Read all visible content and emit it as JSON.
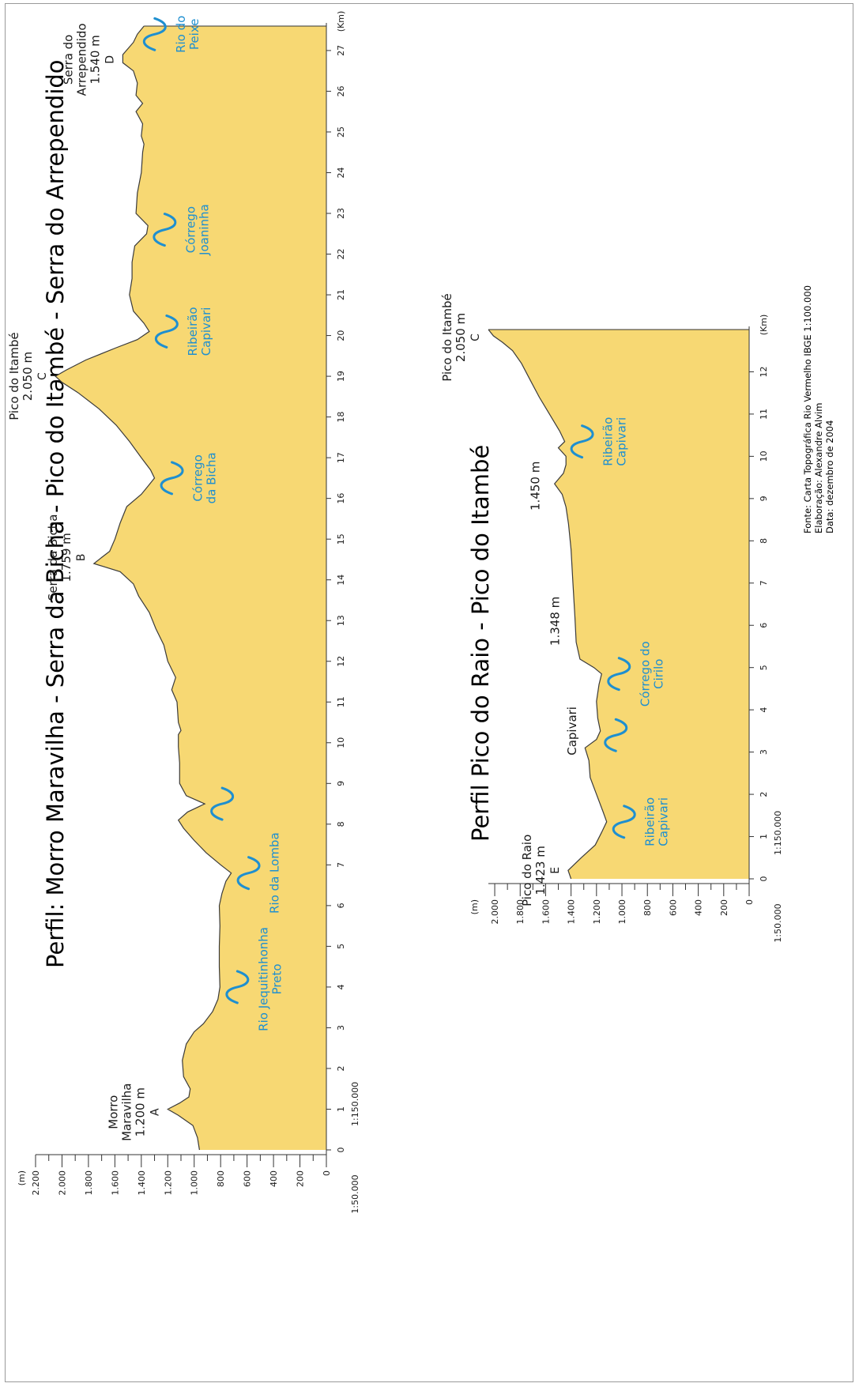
{
  "colors": {
    "terrain": "#f7d873",
    "terrain_stroke": "#3b3b3b",
    "river": "#1e8fd0",
    "river_label": "#1e8fd0",
    "axis": "#333333",
    "text": "#1a1a1a"
  },
  "chart_data": [
    {
      "type": "area",
      "title": "Perfil: Morro Maravilha - Serra da Bicha - Pico do Itambé - Serra do Arrependido",
      "ylabel": "(m)",
      "xlabel": "(Km)",
      "vertical_scale": "1:50.000",
      "horizontal_scale": "1:150.000",
      "xlim": [
        0,
        27.6
      ],
      "ylim": [
        0,
        2200
      ],
      "yticks": [
        0,
        200,
        400,
        600,
        800,
        1000,
        1200,
        1400,
        1600,
        1800,
        2000,
        2200
      ],
      "ytick_labels": [
        "0",
        "200",
        "400",
        "600",
        "800",
        "1.000",
        "1.200",
        "1.400",
        "1.600",
        "1.800",
        "2.000",
        "2.200"
      ],
      "xticks": [
        0,
        1,
        2,
        3,
        4,
        5,
        6,
        7,
        8,
        9,
        10,
        11,
        12,
        13,
        14,
        15,
        16,
        17,
        18,
        19,
        20,
        21,
        22,
        23,
        24,
        25,
        26,
        27
      ],
      "xtick_labels": [
        "0",
        "1",
        "2",
        "3",
        "4",
        "5",
        "6",
        "7",
        "8",
        "9",
        "10",
        "11",
        "12",
        "13",
        "14",
        "15",
        "16",
        "17",
        "18",
        "19",
        "20",
        "21",
        "22",
        "23",
        "24",
        "25",
        "26",
        "27"
      ],
      "x": [
        0,
        0.3,
        0.6,
        0.85,
        1.0,
        1.15,
        1.3,
        1.5,
        1.8,
        2.2,
        2.6,
        2.9,
        3.1,
        3.4,
        3.7,
        4.0,
        4.5,
        5.0,
        5.5,
        6.0,
        6.3,
        6.6,
        6.8,
        7.0,
        7.3,
        7.6,
        7.9,
        8.1,
        8.3,
        8.5,
        8.7,
        9.0,
        9.5,
        9.9,
        10.2,
        10.3,
        10.5,
        11.0,
        11.3,
        11.6,
        12.0,
        12.4,
        12.8,
        13.2,
        13.6,
        13.9,
        14.2,
        14.4,
        14.55,
        14.7,
        15.0,
        15.4,
        15.8,
        16.1,
        16.3,
        16.5,
        16.7,
        17.0,
        17.4,
        17.8,
        18.2,
        18.6,
        18.85,
        19.0,
        19.15,
        19.4,
        19.7,
        19.9,
        20.1,
        20.3,
        20.6,
        21.0,
        21.4,
        21.8,
        22.2,
        22.5,
        22.7,
        23.0,
        23.5,
        24.0,
        24.5,
        24.7,
        24.9,
        25.2,
        25.5,
        25.7,
        25.9,
        26.2,
        26.5,
        26.7,
        26.9,
        27.2,
        27.4,
        27.6
      ],
      "y": [
        960,
        975,
        1010,
        1120,
        1200,
        1110,
        1040,
        1030,
        1080,
        1090,
        1060,
        1000,
        930,
        860,
        820,
        805,
        810,
        810,
        805,
        810,
        790,
        760,
        720,
        800,
        910,
        1000,
        1080,
        1120,
        1050,
        920,
        1060,
        1110,
        1110,
        1120,
        1120,
        1100,
        1120,
        1130,
        1170,
        1140,
        1200,
        1230,
        1290,
        1340,
        1420,
        1460,
        1560,
        1759,
        1700,
        1640,
        1600,
        1560,
        1510,
        1400,
        1350,
        1300,
        1330,
        1400,
        1490,
        1590,
        1720,
        1880,
        2000,
        2050,
        1970,
        1820,
        1590,
        1430,
        1340,
        1380,
        1460,
        1490,
        1470,
        1470,
        1450,
        1360,
        1350,
        1440,
        1430,
        1400,
        1390,
        1380,
        1400,
        1390,
        1440,
        1390,
        1440,
        1430,
        1460,
        1540,
        1540,
        1460,
        1430,
        1380
      ]
    },
    {
      "type": "area",
      "title": "Perfil Pico do Raio - Pico do Itambé",
      "ylabel": "(m)",
      "xlabel": "(Km)",
      "vertical_scale": "1:50.000",
      "horizontal_scale": "1:150.000",
      "xlim": [
        0,
        13
      ],
      "ylim": [
        0,
        2050
      ],
      "yticks": [
        0,
        200,
        400,
        600,
        800,
        1000,
        1200,
        1400,
        1600,
        1800,
        2000
      ],
      "ytick_labels": [
        "0",
        "200",
        "400",
        "600",
        "800",
        "1.000",
        "1.200",
        "1.400",
        "1.600",
        "1.800",
        "2.000"
      ],
      "xticks": [
        0,
        1,
        2,
        3,
        4,
        5,
        6,
        7,
        8,
        9,
        10,
        11,
        12
      ],
      "xtick_labels": [
        "0",
        "1",
        "2",
        "3",
        "4",
        "5",
        "6",
        "7",
        "8",
        "9",
        "10",
        "11",
        "12"
      ],
      "x": [
        0,
        0.2,
        0.5,
        0.8,
        1.1,
        1.35,
        1.6,
        2.0,
        2.4,
        2.8,
        3.1,
        3.3,
        3.5,
        3.8,
        4.2,
        4.6,
        4.85,
        5.0,
        5.2,
        5.6,
        6.2,
        7.0,
        7.8,
        8.4,
        8.8,
        9.1,
        9.35,
        9.6,
        9.8,
        10.0,
        10.2,
        10.35,
        10.6,
        11.0,
        11.4,
        11.8,
        12.2,
        12.5,
        12.7,
        12.85,
        13.0
      ],
      "y": [
        1400,
        1423,
        1320,
        1210,
        1160,
        1120,
        1150,
        1200,
        1250,
        1260,
        1290,
        1200,
        1170,
        1190,
        1200,
        1180,
        1160,
        1220,
        1330,
        1360,
        1370,
        1385,
        1400,
        1420,
        1440,
        1470,
        1530,
        1460,
        1440,
        1440,
        1500,
        1450,
        1490,
        1570,
        1650,
        1720,
        1790,
        1860,
        1940,
        2010,
        2050
      ]
    }
  ],
  "profile1": {
    "points": {
      "A": {
        "label": "A",
        "name": [
          "Morro",
          "Maravilha",
          "1.200 m"
        ]
      },
      "B": {
        "label": "B",
        "name": [
          "Serra da Bicha",
          "1.759 m"
        ]
      },
      "C": {
        "label": "C",
        "name": [
          "Pico do Itambé",
          "2.050 m"
        ]
      },
      "D": {
        "label": "D",
        "name": [
          "Serra do",
          "Arrependido",
          "1.540 m"
        ]
      }
    },
    "rivers": [
      {
        "km": 4.0,
        "label": [
          "Rio Jequitinhonha",
          "Preto"
        ]
      },
      {
        "km": 6.8,
        "label": [
          "Rio da Lomba"
        ]
      },
      {
        "km": 8.5,
        "label": []
      },
      {
        "km": 16.5,
        "label": [
          "Córrego",
          "da Bicha"
        ]
      },
      {
        "km": 20.1,
        "label": [
          "Ribeirão",
          "Capivari"
        ]
      },
      {
        "km": 22.6,
        "label": [
          "Córrego",
          "Joaninha"
        ]
      },
      {
        "km": 27.4,
        "label": [
          "Rio do",
          "Peixe"
        ]
      }
    ]
  },
  "profile2": {
    "points": {
      "E": {
        "label": "E",
        "name": [
          "Pico do Raio",
          "1.423 m"
        ]
      },
      "C": {
        "label": "C",
        "name": [
          "Pico do Itambé",
          "2.050 m"
        ]
      }
    },
    "elevation_labels": [
      "Capivari",
      "1.348 m",
      "1.450 m"
    ],
    "rivers": [
      {
        "km": 1.35,
        "label": [
          "Ribeirão",
          "Capivari"
        ]
      },
      {
        "km": 3.4,
        "label": []
      },
      {
        "km": 4.85,
        "label": [
          "Córrego do",
          "Cirilo"
        ]
      },
      {
        "km": 10.35,
        "label": [
          "Ribeirão",
          "Capivari"
        ]
      }
    ]
  },
  "source": {
    "line1": "Fonte: Carta Topográfica Rio Vermelho IBGE 1:100.000",
    "line2": "Elaboração: Alexandre Alvim",
    "line3": "Data: dezembro de 2004"
  }
}
